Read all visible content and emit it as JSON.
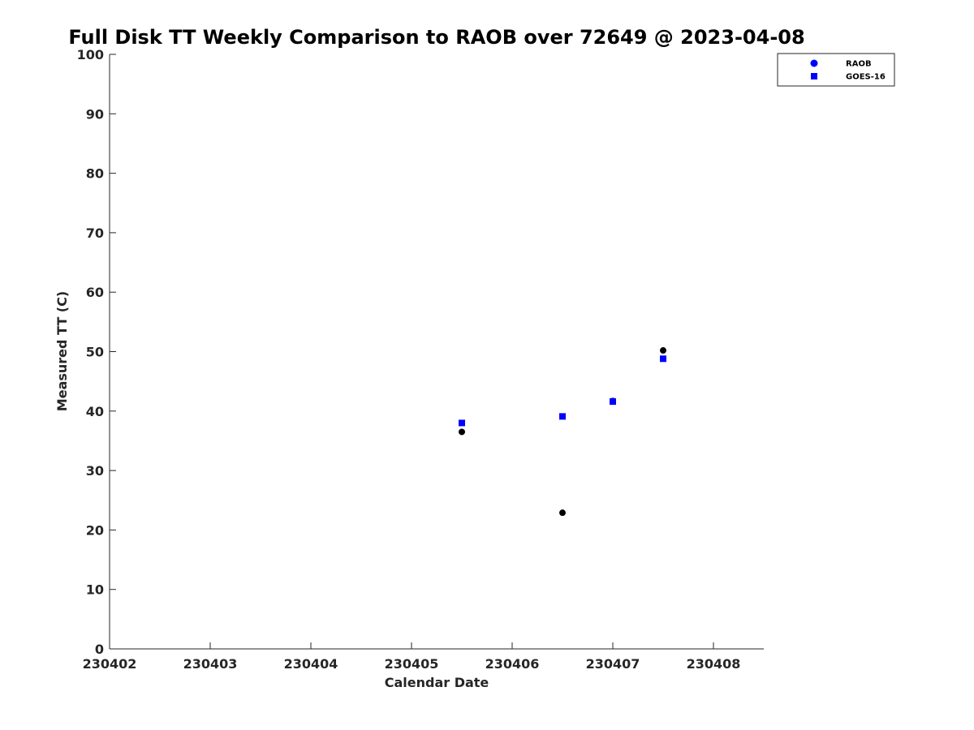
{
  "chart_data": {
    "type": "scatter",
    "title": "Full Disk TT Weekly Comparison to RAOB over 72649 @ 2023-04-08",
    "xlabel": "Calendar Date",
    "ylabel": "Measured TT (C)",
    "xlim": [
      230402,
      230408.5
    ],
    "ylim": [
      0,
      100
    ],
    "xticks": [
      230402,
      230403,
      230404,
      230405,
      230406,
      230407,
      230408
    ],
    "xtick_labels": [
      "230402",
      "230403",
      "230404",
      "230405",
      "230406",
      "230407",
      "230408"
    ],
    "yticks": [
      0,
      10,
      20,
      30,
      40,
      50,
      60,
      70,
      80,
      90,
      100
    ],
    "ytick_labels": [
      "0",
      "10",
      "20",
      "30",
      "40",
      "50",
      "60",
      "70",
      "80",
      "90",
      "100"
    ],
    "grid": false,
    "legend_position": "top-right",
    "legend_entries": [
      "RAOB",
      "GOES-16"
    ],
    "series": [
      {
        "name": "RAOB",
        "marker": "circle",
        "color": "#000000",
        "legend_color": "#0000ff",
        "points": [
          {
            "x": 230405.5,
            "y": 36.5
          },
          {
            "x": 230406.5,
            "y": 22.9
          },
          {
            "x": 230407.0,
            "y": 41.7
          },
          {
            "x": 230407.5,
            "y": 50.2
          }
        ]
      },
      {
        "name": "GOES-16",
        "marker": "square",
        "color": "#0000ff",
        "legend_color": "#0000ff",
        "points": [
          {
            "x": 230405.5,
            "y": 38.0
          },
          {
            "x": 230406.5,
            "y": 39.1
          },
          {
            "x": 230407.0,
            "y": 41.6
          },
          {
            "x": 230407.5,
            "y": 48.8
          }
        ]
      }
    ]
  }
}
